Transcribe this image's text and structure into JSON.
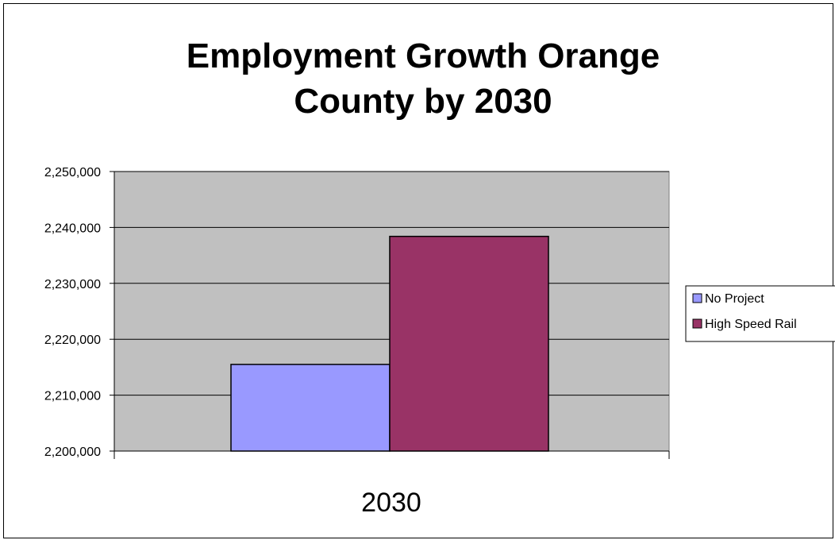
{
  "chart_data": {
    "type": "bar",
    "title_lines": [
      "Employment Growth Orange",
      "County by 2030"
    ],
    "categories": [
      "2030"
    ],
    "series": [
      {
        "name": "No Project",
        "values": [
          2215500
        ],
        "color": "#9999FF"
      },
      {
        "name": "High Speed Rail",
        "values": [
          2238400
        ],
        "color": "#993366"
      }
    ],
    "ylim": [
      2200000,
      2250000
    ],
    "yticks": [
      "2,200,000",
      "2,210,000",
      "2,220,000",
      "2,230,000",
      "2,240,000",
      "2,250,000"
    ],
    "ytick_values": [
      2200000,
      2210000,
      2220000,
      2230000,
      2240000,
      2250000
    ],
    "plot_background": "#C0C0C0",
    "grid": true,
    "legend_position": "right"
  }
}
